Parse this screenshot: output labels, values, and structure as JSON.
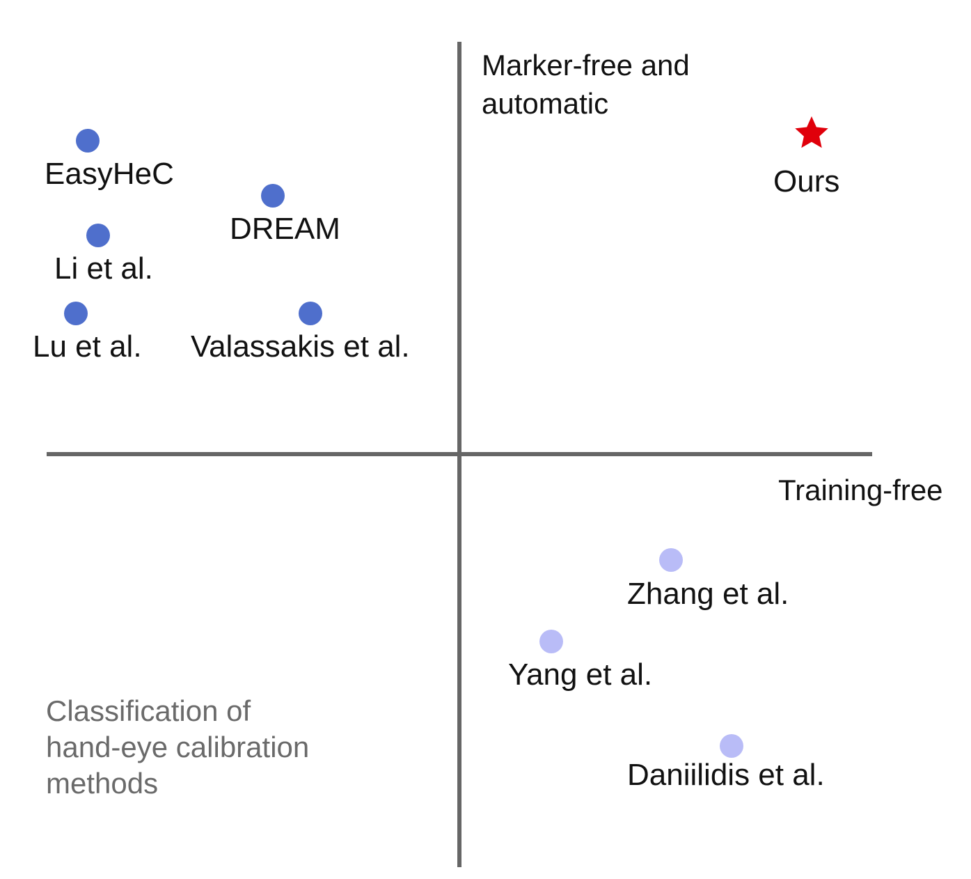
{
  "axes": {
    "vertical_label_lines": [
      "Marker-free and",
      "automatic"
    ],
    "horizontal_label": "Training-free",
    "line_color": "#666666"
  },
  "caption_lines": [
    "Classification of",
    "hand-eye calibration",
    "methods"
  ],
  "colors": {
    "marker_free_dot": "#4f6fcc",
    "training_free_dot": "#b9bcf7",
    "ours_star": "#e0000b",
    "caption": "#6a6a6a"
  },
  "points": [
    {
      "label": "EasyHeC",
      "group": "marker-free",
      "marker": "dot"
    },
    {
      "label": "DREAM",
      "group": "marker-free",
      "marker": "dot"
    },
    {
      "label": "Li et al.",
      "group": "marker-free",
      "marker": "dot"
    },
    {
      "label": "Lu et al.",
      "group": "marker-free",
      "marker": "dot"
    },
    {
      "label": "Valassakis et al.",
      "group": "marker-free",
      "marker": "dot"
    },
    {
      "label": "Ours",
      "group": "both",
      "marker": "star"
    },
    {
      "label": "Zhang et al.",
      "group": "training-free",
      "marker": "dot"
    },
    {
      "label": "Yang et al.",
      "group": "training-free",
      "marker": "dot"
    },
    {
      "label": "Daniilidis et al.",
      "group": "training-free",
      "marker": "dot"
    }
  ]
}
